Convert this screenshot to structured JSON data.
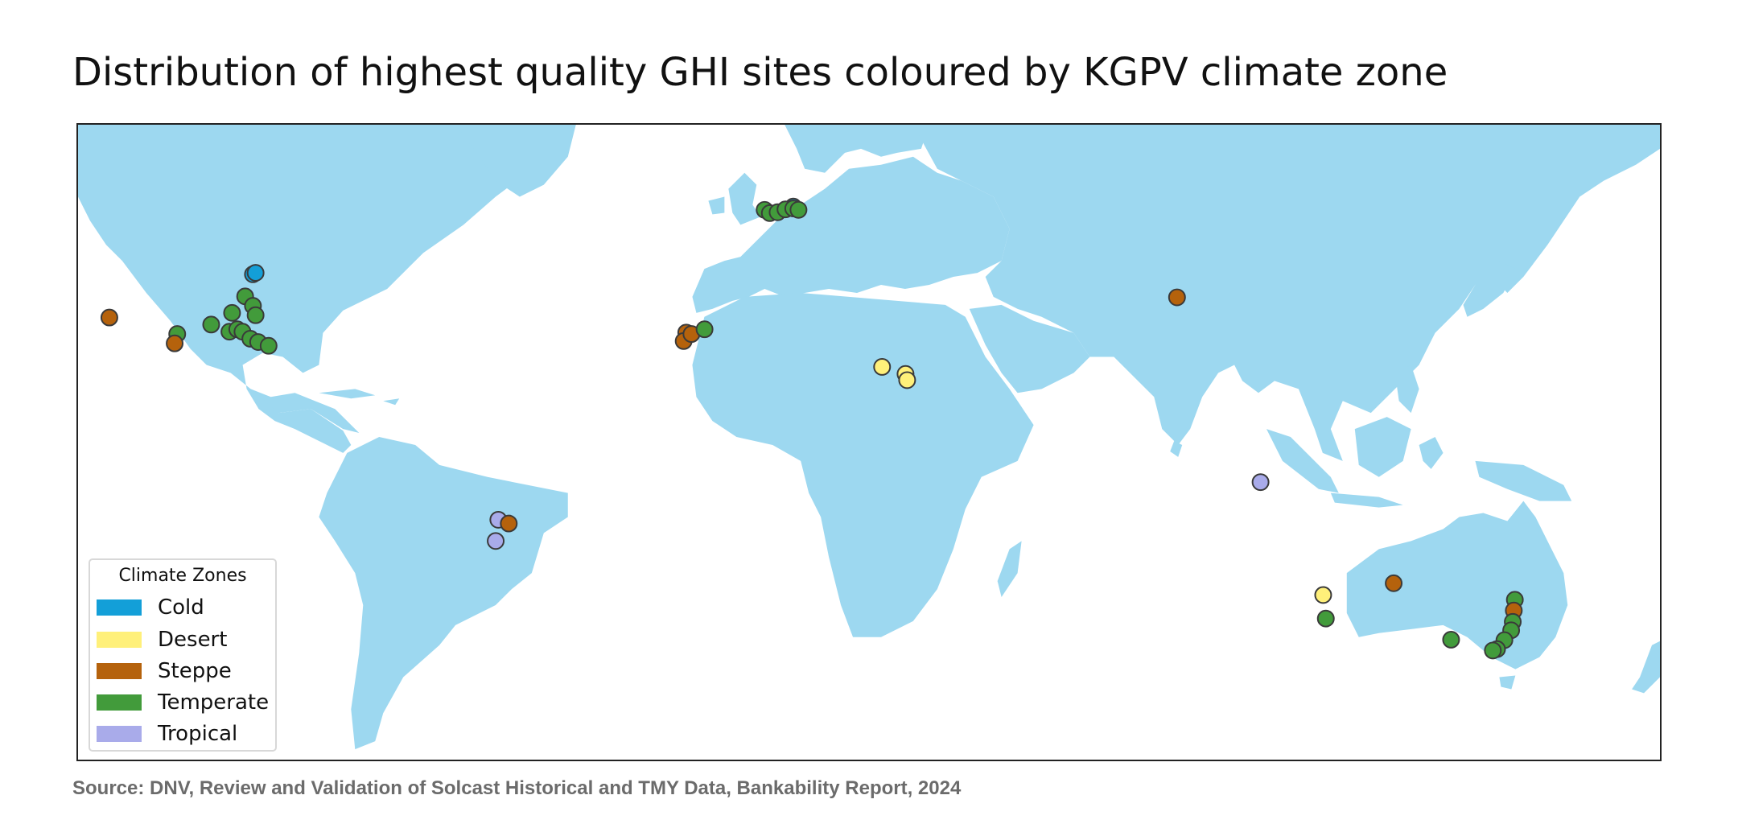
{
  "title": "Distribution of highest quality GHI sites coloured by KGPV climate zone",
  "source": "Source: DNV, Review and Validation of Solcast Historical and TMY Data, Bankability Report, 2024",
  "map": {
    "projection": "equirectangular",
    "land_color": "#9dd8f0",
    "ocean_color": "#ffffff",
    "marker_edge_color": "#3a3a3a"
  },
  "legend": {
    "title": "Climate Zones",
    "placement": "bottom-left",
    "items": [
      {
        "label": "Cold",
        "color": "#139fd8"
      },
      {
        "label": "Desert",
        "color": "#fff07a"
      },
      {
        "label": "Steppe",
        "color": "#b5620c"
      },
      {
        "label": "Temperate",
        "color": "#429b3b"
      },
      {
        "label": "Tropical",
        "color": "#a9abea"
      }
    ]
  },
  "sites": [
    {
      "zone": "Steppe",
      "lon": -117.0,
      "lat": 34.0
    },
    {
      "zone": "Cold",
      "lon": -89.5,
      "lat": 43.2
    },
    {
      "zone": "Cold",
      "lon": -89.0,
      "lat": 43.5
    },
    {
      "zone": "Temperate",
      "lon": -91.0,
      "lat": 38.5
    },
    {
      "zone": "Temperate",
      "lon": -89.5,
      "lat": 36.5
    },
    {
      "zone": "Temperate",
      "lon": -89.0,
      "lat": 34.5
    },
    {
      "zone": "Temperate",
      "lon": -93.5,
      "lat": 35.0
    },
    {
      "zone": "Temperate",
      "lon": -94.0,
      "lat": 31.0
    },
    {
      "zone": "Temperate",
      "lon": -92.5,
      "lat": 31.5
    },
    {
      "zone": "Temperate",
      "lon": -91.5,
      "lat": 31.0
    },
    {
      "zone": "Temperate",
      "lon": -90.0,
      "lat": 29.5
    },
    {
      "zone": "Temperate",
      "lon": -88.5,
      "lat": 28.8
    },
    {
      "zone": "Temperate",
      "lon": -86.5,
      "lat": 28.0
    },
    {
      "zone": "Temperate",
      "lon": -104.0,
      "lat": 30.5
    },
    {
      "zone": "Steppe",
      "lon": -104.5,
      "lat": 28.5
    },
    {
      "zone": "Temperate",
      "lon": -97.5,
      "lat": 32.5
    },
    {
      "zone": "Cold",
      "lon": 14.0,
      "lat": 57.6
    },
    {
      "zone": "Temperate",
      "lon": 8.5,
      "lat": 56.9
    },
    {
      "zone": "Temperate",
      "lon": 9.5,
      "lat": 56.2
    },
    {
      "zone": "Temperate",
      "lon": 11.0,
      "lat": 56.4
    },
    {
      "zone": "Temperate",
      "lon": 12.5,
      "lat": 57.0
    },
    {
      "zone": "Temperate",
      "lon": 14.0,
      "lat": 57.2
    },
    {
      "zone": "Temperate",
      "lon": 15.0,
      "lat": 56.9
    },
    {
      "zone": "Steppe",
      "lon": -6.5,
      "lat": 30.8
    },
    {
      "zone": "Steppe",
      "lon": -7.0,
      "lat": 29.0
    },
    {
      "zone": "Steppe",
      "lon": -5.5,
      "lat": 30.5
    },
    {
      "zone": "Temperate",
      "lon": -3.0,
      "lat": 31.5
    },
    {
      "zone": "Desert",
      "lon": 31.0,
      "lat": 23.5
    },
    {
      "zone": "Desert",
      "lon": 35.5,
      "lat": 22.0
    },
    {
      "zone": "Desert",
      "lon": 35.8,
      "lat": 20.7
    },
    {
      "zone": "Steppe",
      "lon": 87.5,
      "lat": 38.3
    },
    {
      "zone": "Tropical",
      "lon": 103.5,
      "lat": -1.0
    },
    {
      "zone": "Tropical",
      "lon": -42.5,
      "lat": -9.0
    },
    {
      "zone": "Steppe",
      "lon": -40.5,
      "lat": -9.8
    },
    {
      "zone": "Tropical",
      "lon": -43.0,
      "lat": -13.5
    },
    {
      "zone": "Desert",
      "lon": 115.5,
      "lat": -25.0
    },
    {
      "zone": "Temperate",
      "lon": 116.0,
      "lat": -30.0
    },
    {
      "zone": "Steppe",
      "lon": 129.0,
      "lat": -22.5
    },
    {
      "zone": "Temperate",
      "lon": 152.2,
      "lat": -26.0
    },
    {
      "zone": "Steppe",
      "lon": 152.0,
      "lat": -28.3
    },
    {
      "zone": "Temperate",
      "lon": 151.8,
      "lat": -30.7
    },
    {
      "zone": "Temperate",
      "lon": 151.5,
      "lat": -32.5
    },
    {
      "zone": "Temperate",
      "lon": 150.2,
      "lat": -34.6
    },
    {
      "zone": "Temperate",
      "lon": 148.8,
      "lat": -36.5
    },
    {
      "zone": "Temperate",
      "lon": 148.0,
      "lat": -36.8
    },
    {
      "zone": "Temperate",
      "lon": 140.0,
      "lat": -34.5
    }
  ]
}
